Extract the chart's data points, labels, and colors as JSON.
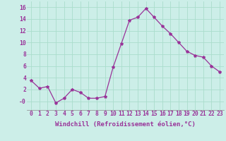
{
  "x": [
    0,
    1,
    2,
    3,
    4,
    5,
    6,
    7,
    8,
    9,
    10,
    11,
    12,
    13,
    14,
    15,
    16,
    17,
    18,
    19,
    20,
    21,
    22,
    23
  ],
  "y": [
    3.5,
    2.2,
    2.5,
    -0.3,
    0.5,
    2.0,
    1.5,
    0.5,
    0.5,
    0.8,
    5.8,
    9.8,
    13.8,
    14.3,
    15.8,
    14.3,
    12.8,
    11.5,
    10.0,
    8.5,
    7.8,
    7.5,
    6.0,
    5.0
  ],
  "line_color": "#993399",
  "marker": "*",
  "marker_size": 3,
  "linewidth": 0.9,
  "xlabel": "Windchill (Refroidissement éolien,°C)",
  "xlabel_fontsize": 6.5,
  "ylim": [
    -1.5,
    17
  ],
  "xlim": [
    -0.5,
    23.5
  ],
  "yticks": [
    0,
    2,
    4,
    6,
    8,
    10,
    12,
    14,
    16
  ],
  "ytick_labels": [
    "-0",
    "2",
    "4",
    "6",
    "8",
    "10",
    "12",
    "14",
    "16"
  ],
  "xticks": [
    0,
    1,
    2,
    3,
    4,
    5,
    6,
    7,
    8,
    9,
    10,
    11,
    12,
    13,
    14,
    15,
    16,
    17,
    18,
    19,
    20,
    21,
    22,
    23
  ],
  "grid_color": "#aaddcc",
  "bg_color": "#cceee8",
  "tick_fontsize": 5.8,
  "tick_color": "#993399"
}
